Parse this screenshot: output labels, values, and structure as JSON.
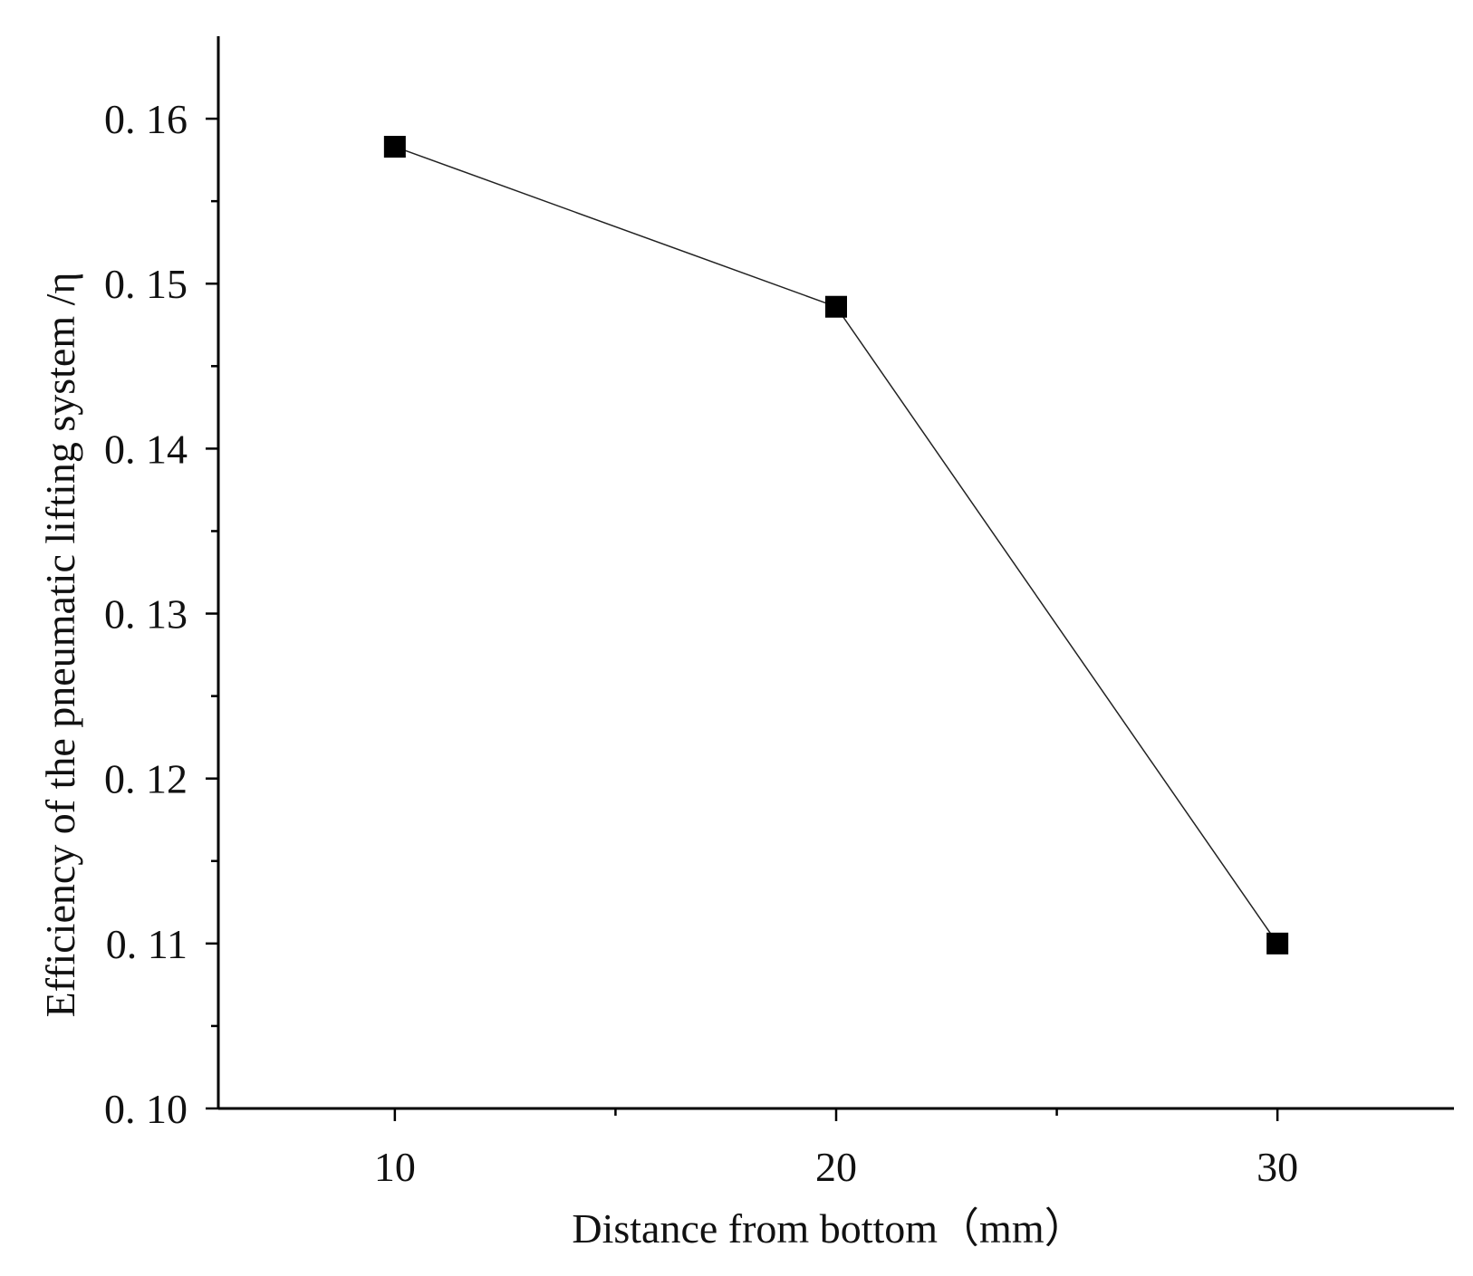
{
  "chart_data": {
    "type": "line",
    "title": "",
    "xlabel": "Distance from bottom（mm）",
    "ylabel": "Efficiency of the pneumatic lifting system /η",
    "x": [
      10,
      20,
      30
    ],
    "series": [
      {
        "values": [
          0.1583,
          0.1486,
          0.11
        ]
      }
    ],
    "xlim": [
      6,
      34
    ],
    "ylim": [
      0.1,
      0.165
    ],
    "x_ticks": [
      10,
      20,
      30
    ],
    "x_tick_labels": [
      "10",
      "20",
      "30"
    ],
    "x_minor_ticks": [
      15,
      25
    ],
    "y_ticks": [
      0.1,
      0.11,
      0.12,
      0.13,
      0.14,
      0.15,
      0.16
    ],
    "y_tick_labels": [
      "0. 10",
      "0. 11",
      "0. 12",
      "0. 13",
      "0. 14",
      "0. 15",
      "0. 16"
    ],
    "y_minor_ticks": [
      0.105,
      0.115,
      0.125,
      0.135,
      0.145,
      0.155
    ],
    "marker": "square",
    "grid": false,
    "legend": "none"
  }
}
